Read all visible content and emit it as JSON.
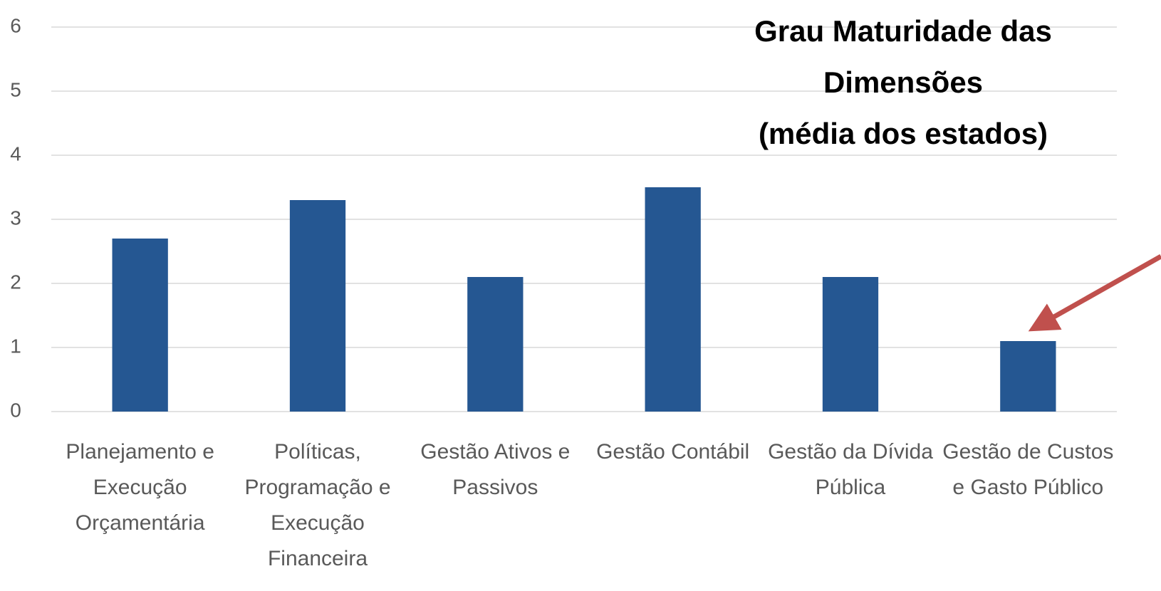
{
  "chart_data": {
    "type": "bar",
    "title": "Grau Maturidade das Dimensões\n(média dos estados)",
    "categories": [
      "Planejamento e Execução Orçamentária",
      "Políticas, Programação e Execução Financeira",
      "Gestão Ativos e Passivos",
      "Gestão Contábil",
      "Gestão da Dívida Pública",
      "Gestão de Custos e Gasto Público"
    ],
    "values": [
      2.7,
      3.3,
      2.1,
      3.5,
      2.1,
      1.1
    ],
    "color": "#255792",
    "ylim": [
      0,
      6
    ],
    "yticks": [
      0,
      1,
      2,
      3,
      4,
      5,
      6
    ],
    "grid": true
  }
}
